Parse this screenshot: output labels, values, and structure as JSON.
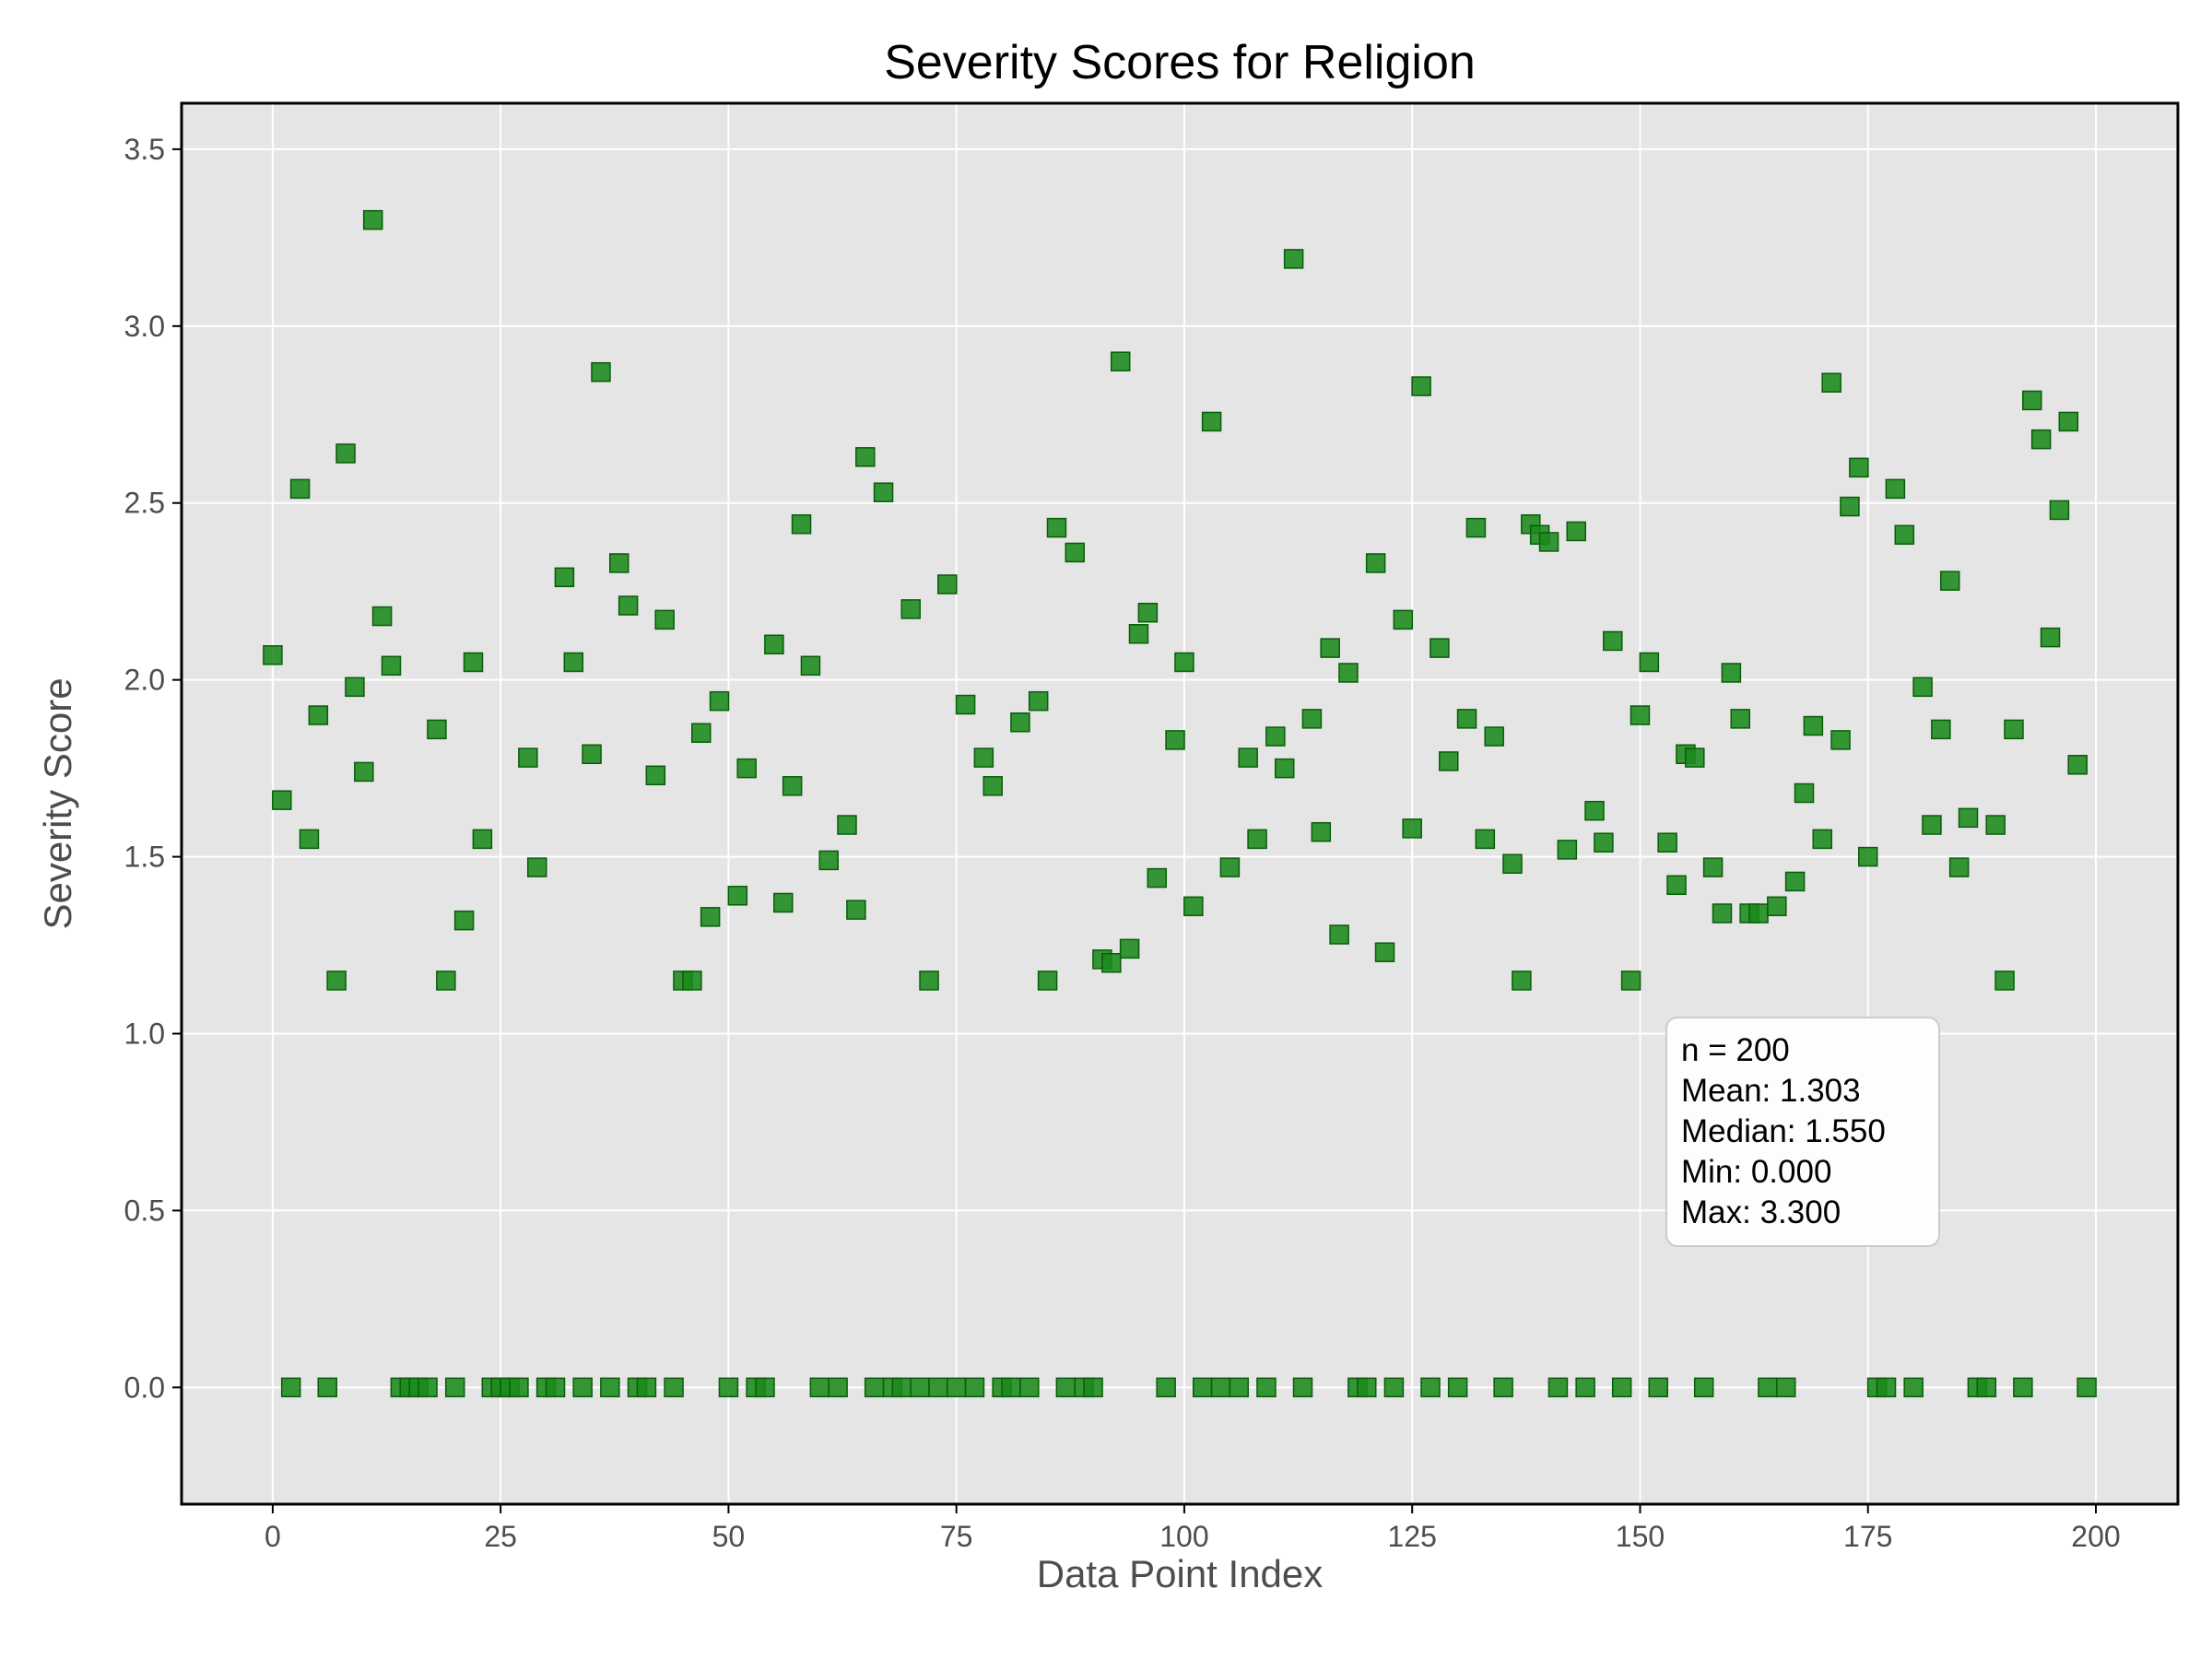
{
  "chart_data": {
    "type": "scatter",
    "title": "Severity Scores for Religion",
    "xlabel": "Data Point Index",
    "ylabel": "Severity Score",
    "xlim": [
      -10,
      209
    ],
    "ylim": [
      -0.33,
      3.63
    ],
    "xticks": [
      0,
      25,
      50,
      75,
      100,
      125,
      150,
      175,
      200
    ],
    "xtick_labels": [
      "0",
      "25",
      "50",
      "75",
      "100",
      "125",
      "150",
      "175",
      "200"
    ],
    "yticks": [
      0.0,
      0.5,
      1.0,
      1.5,
      2.0,
      2.5,
      3.0,
      3.5
    ],
    "ytick_labels": [
      "0.0",
      "0.5",
      "1.0",
      "1.5",
      "2.0",
      "2.5",
      "3.0",
      "3.5"
    ],
    "grid": true,
    "marker": "square",
    "colors": {
      "marker": "#1a8a1a",
      "marker_edge": "#0b5c0b",
      "plot_bg": "#e5e5e5",
      "grid": "#ffffff"
    },
    "x": [
      0,
      1,
      2,
      3,
      4,
      5,
      6,
      7,
      8,
      9,
      10,
      11,
      12,
      13,
      14,
      15,
      16,
      17,
      18,
      19,
      20,
      21,
      22,
      23,
      24,
      25,
      26,
      27,
      28,
      29,
      30,
      31,
      32,
      33,
      34,
      35,
      36,
      37,
      38,
      39,
      40,
      41,
      42,
      43,
      44,
      45,
      46,
      47,
      48,
      49,
      50,
      51,
      52,
      53,
      54,
      55,
      56,
      57,
      58,
      59,
      60,
      61,
      62,
      63,
      64,
      65,
      66,
      67,
      68,
      69,
      70,
      71,
      72,
      73,
      74,
      75,
      76,
      77,
      78,
      79,
      80,
      81,
      82,
      83,
      84,
      85,
      86,
      87,
      88,
      89,
      90,
      91,
      92,
      93,
      94,
      95,
      96,
      97,
      98,
      99,
      100,
      101,
      102,
      103,
      104,
      105,
      106,
      107,
      108,
      109,
      110,
      111,
      112,
      113,
      114,
      115,
      116,
      117,
      118,
      119,
      120,
      121,
      122,
      123,
      124,
      125,
      126,
      127,
      128,
      129,
      130,
      131,
      132,
      133,
      134,
      135,
      136,
      137,
      138,
      139,
      140,
      141,
      142,
      143,
      144,
      145,
      146,
      147,
      148,
      149,
      150,
      151,
      152,
      153,
      154,
      155,
      156,
      157,
      158,
      159,
      160,
      161,
      162,
      163,
      164,
      165,
      166,
      167,
      168,
      169,
      170,
      171,
      172,
      173,
      174,
      175,
      176,
      177,
      178,
      179,
      180,
      181,
      182,
      183,
      184,
      185,
      186,
      187,
      188,
      189,
      190,
      191,
      192,
      193,
      194,
      195,
      196,
      197,
      198,
      199
    ],
    "y": [
      2.07,
      1.66,
      0,
      2.54,
      1.55,
      1.9,
      0,
      1.15,
      2.64,
      1.98,
      1.74,
      3.3,
      2.18,
      2.04,
      0,
      0,
      0,
      0,
      1.86,
      1.15,
      0,
      1.32,
      2.05,
      1.55,
      0,
      0,
      0,
      0,
      1.78,
      1.47,
      0,
      0,
      2.29,
      2.05,
      0,
      1.79,
      2.87,
      0,
      2.33,
      2.21,
      0,
      0,
      1.73,
      2.17,
      0,
      1.15,
      1.15,
      1.85,
      1.33,
      1.94,
      0,
      1.39,
      1.75,
      0,
      0,
      2.1,
      1.37,
      1.7,
      2.44,
      2.04,
      0,
      1.49,
      0,
      1.59,
      1.35,
      2.63,
      0,
      2.53,
      0,
      0,
      2.2,
      0,
      1.15,
      0,
      2.27,
      0,
      1.93,
      0,
      1.78,
      1.7,
      0,
      0,
      1.88,
      0,
      1.94,
      1.15,
      2.43,
      0,
      2.36,
      0,
      0,
      1.21,
      1.2,
      2.9,
      1.24,
      2.13,
      2.19,
      1.44,
      0,
      1.83,
      2.05,
      1.36,
      0,
      2.73,
      0,
      1.47,
      0,
      1.78,
      1.55,
      0,
      1.84,
      1.75,
      3.19,
      0,
      1.89,
      1.57,
      2.09,
      1.28,
      2.02,
      0,
      0,
      2.33,
      1.23,
      0,
      2.17,
      1.58,
      2.83,
      0,
      2.09,
      1.77,
      0,
      1.89,
      2.43,
      1.55,
      1.84,
      0,
      1.48,
      1.15,
      2.44,
      2.41,
      2.39,
      0,
      1.52,
      2.42,
      0,
      1.63,
      1.54,
      2.11,
      0,
      1.15,
      1.9,
      2.05,
      0,
      1.54,
      1.42,
      1.79,
      1.78,
      0,
      1.47,
      1.34,
      2.02,
      1.89,
      1.34,
      1.34,
      0,
      1.36,
      0,
      1.43,
      1.68,
      1.87,
      1.55,
      2.84,
      1.83,
      2.49,
      2.6,
      1.5,
      0,
      0,
      2.54,
      2.41,
      0,
      1.98,
      1.59,
      1.86,
      2.28,
      1.47,
      1.61,
      0,
      0,
      1.59,
      1.15,
      1.86,
      0,
      2.79,
      2.68,
      2.12,
      2.48,
      2.73,
      1.76,
      0
    ],
    "annotations": {
      "stats_lines": [
        "n = 200",
        "Mean: 1.303",
        "Median: 1.550",
        "Min: 0.000",
        "Max: 3.300"
      ],
      "placement": "lower-right"
    }
  }
}
